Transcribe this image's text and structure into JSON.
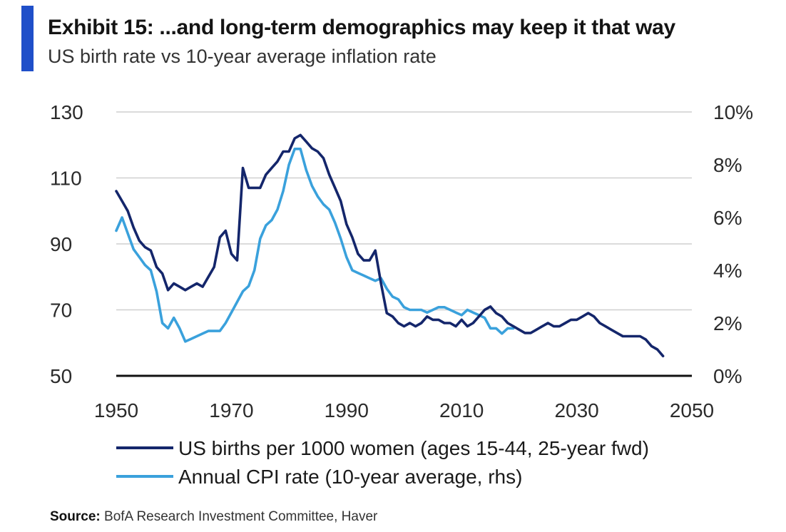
{
  "header": {
    "title": "Exhibit 15: ...and long-term demographics may keep it that way",
    "subtitle": "US birth rate vs 10-year average inflation rate",
    "accent_color": "#1f4fc9"
  },
  "source": {
    "label": "Source:",
    "text": "BofA Research Investment Committee, Haver"
  },
  "chart_data": {
    "type": "line",
    "x_ticks": [
      "1950",
      "1970",
      "1990",
      "2010",
      "2030",
      "2050"
    ],
    "y_left_ticks": [
      "130",
      "110",
      "90",
      "70",
      "50"
    ],
    "y_right_ticks": [
      "10%",
      "8%",
      "6%",
      "4%",
      "2%",
      "0%"
    ],
    "xlim": [
      1950,
      2050
    ],
    "ylim_left": [
      50,
      130
    ],
    "ylim_right": [
      0,
      10
    ],
    "grid": true,
    "legend_position": "bottom-left",
    "series": [
      {
        "name": "US births per 1000 women (ages 15-44, 25-year fwd)",
        "axis": "left",
        "color": "#14266b",
        "points": [
          [
            1950,
            106
          ],
          [
            1951,
            103
          ],
          [
            1952,
            100
          ],
          [
            1953,
            95
          ],
          [
            1954,
            91
          ],
          [
            1955,
            89
          ],
          [
            1956,
            88
          ],
          [
            1957,
            83
          ],
          [
            1958,
            81
          ],
          [
            1959,
            76
          ],
          [
            1960,
            78
          ],
          [
            1961,
            77
          ],
          [
            1962,
            76
          ],
          [
            1963,
            77
          ],
          [
            1964,
            78
          ],
          [
            1965,
            77
          ],
          [
            1966,
            80
          ],
          [
            1967,
            83
          ],
          [
            1968,
            92
          ],
          [
            1969,
            94
          ],
          [
            1970,
            87
          ],
          [
            1971,
            85
          ],
          [
            1972,
            113
          ],
          [
            1973,
            107
          ],
          [
            1974,
            107
          ],
          [
            1975,
            107
          ],
          [
            1976,
            111
          ],
          [
            1977,
            113
          ],
          [
            1978,
            115
          ],
          [
            1979,
            118
          ],
          [
            1980,
            118
          ],
          [
            1981,
            122
          ],
          [
            1982,
            123
          ],
          [
            1983,
            121
          ],
          [
            1984,
            119
          ],
          [
            1985,
            118
          ],
          [
            1986,
            116
          ],
          [
            1987,
            111
          ],
          [
            1988,
            107
          ],
          [
            1989,
            103
          ],
          [
            1990,
            96
          ],
          [
            1991,
            92
          ],
          [
            1992,
            87
          ],
          [
            1993,
            85
          ],
          [
            1994,
            85
          ],
          [
            1995,
            88
          ],
          [
            1996,
            78
          ],
          [
            1997,
            69
          ],
          [
            1998,
            68
          ],
          [
            1999,
            66
          ],
          [
            2000,
            65
          ],
          [
            2001,
            66
          ],
          [
            2002,
            65
          ],
          [
            2003,
            66
          ],
          [
            2004,
            68
          ],
          [
            2005,
            67
          ],
          [
            2006,
            67
          ],
          [
            2007,
            66
          ],
          [
            2008,
            66
          ],
          [
            2009,
            65
          ],
          [
            2010,
            67
          ],
          [
            2011,
            65
          ],
          [
            2012,
            66
          ],
          [
            2013,
            68
          ],
          [
            2014,
            70
          ],
          [
            2015,
            71
          ],
          [
            2016,
            69
          ],
          [
            2017,
            68
          ],
          [
            2018,
            66
          ],
          [
            2019,
            65
          ],
          [
            2020,
            64
          ],
          [
            2021,
            63
          ],
          [
            2022,
            63
          ],
          [
            2023,
            64
          ],
          [
            2024,
            65
          ],
          [
            2025,
            66
          ],
          [
            2026,
            65
          ],
          [
            2027,
            65
          ],
          [
            2028,
            66
          ],
          [
            2029,
            67
          ],
          [
            2030,
            67
          ],
          [
            2031,
            68
          ],
          [
            2032,
            69
          ],
          [
            2033,
            68
          ],
          [
            2034,
            66
          ],
          [
            2035,
            65
          ],
          [
            2036,
            64
          ],
          [
            2037,
            63
          ],
          [
            2038,
            62
          ],
          [
            2039,
            62
          ],
          [
            2040,
            62
          ],
          [
            2041,
            62
          ],
          [
            2042,
            61
          ],
          [
            2043,
            59
          ],
          [
            2044,
            58
          ],
          [
            2045,
            56
          ]
        ]
      },
      {
        "name": "Annual CPI rate (10-year average, rhs)",
        "axis": "right",
        "color": "#3aa1dc",
        "points": [
          [
            1950,
            5.5
          ],
          [
            1951,
            6.0
          ],
          [
            1952,
            5.4
          ],
          [
            1953,
            4.8
          ],
          [
            1954,
            4.5
          ],
          [
            1955,
            4.2
          ],
          [
            1956,
            4.0
          ],
          [
            1957,
            3.2
          ],
          [
            1958,
            2.0
          ],
          [
            1959,
            1.8
          ],
          [
            1960,
            2.2
          ],
          [
            1961,
            1.8
          ],
          [
            1962,
            1.3
          ],
          [
            1963,
            1.4
          ],
          [
            1964,
            1.5
          ],
          [
            1965,
            1.6
          ],
          [
            1966,
            1.7
          ],
          [
            1967,
            1.7
          ],
          [
            1968,
            1.7
          ],
          [
            1969,
            2.0
          ],
          [
            1970,
            2.4
          ],
          [
            1971,
            2.8
          ],
          [
            1972,
            3.2
          ],
          [
            1973,
            3.4
          ],
          [
            1974,
            4.0
          ],
          [
            1975,
            5.2
          ],
          [
            1976,
            5.7
          ],
          [
            1977,
            5.9
          ],
          [
            1978,
            6.3
          ],
          [
            1979,
            7.0
          ],
          [
            1980,
            8.0
          ],
          [
            1981,
            8.6
          ],
          [
            1982,
            8.6
          ],
          [
            1983,
            7.8
          ],
          [
            1984,
            7.2
          ],
          [
            1985,
            6.8
          ],
          [
            1986,
            6.5
          ],
          [
            1987,
            6.3
          ],
          [
            1988,
            5.8
          ],
          [
            1989,
            5.2
          ],
          [
            1990,
            4.5
          ],
          [
            1991,
            4.0
          ],
          [
            1992,
            3.9
          ],
          [
            1993,
            3.8
          ],
          [
            1994,
            3.7
          ],
          [
            1995,
            3.6
          ],
          [
            1996,
            3.7
          ],
          [
            1997,
            3.3
          ],
          [
            1998,
            3.0
          ],
          [
            1999,
            2.9
          ],
          [
            2000,
            2.6
          ],
          [
            2001,
            2.5
          ],
          [
            2002,
            2.5
          ],
          [
            2003,
            2.5
          ],
          [
            2004,
            2.4
          ],
          [
            2005,
            2.5
          ],
          [
            2006,
            2.6
          ],
          [
            2007,
            2.6
          ],
          [
            2008,
            2.5
          ],
          [
            2009,
            2.4
          ],
          [
            2010,
            2.3
          ],
          [
            2011,
            2.5
          ],
          [
            2012,
            2.4
          ],
          [
            2013,
            2.3
          ],
          [
            2014,
            2.2
          ],
          [
            2015,
            1.8
          ],
          [
            2016,
            1.8
          ],
          [
            2017,
            1.6
          ],
          [
            2018,
            1.8
          ],
          [
            2019,
            1.8
          ]
        ]
      }
    ]
  }
}
